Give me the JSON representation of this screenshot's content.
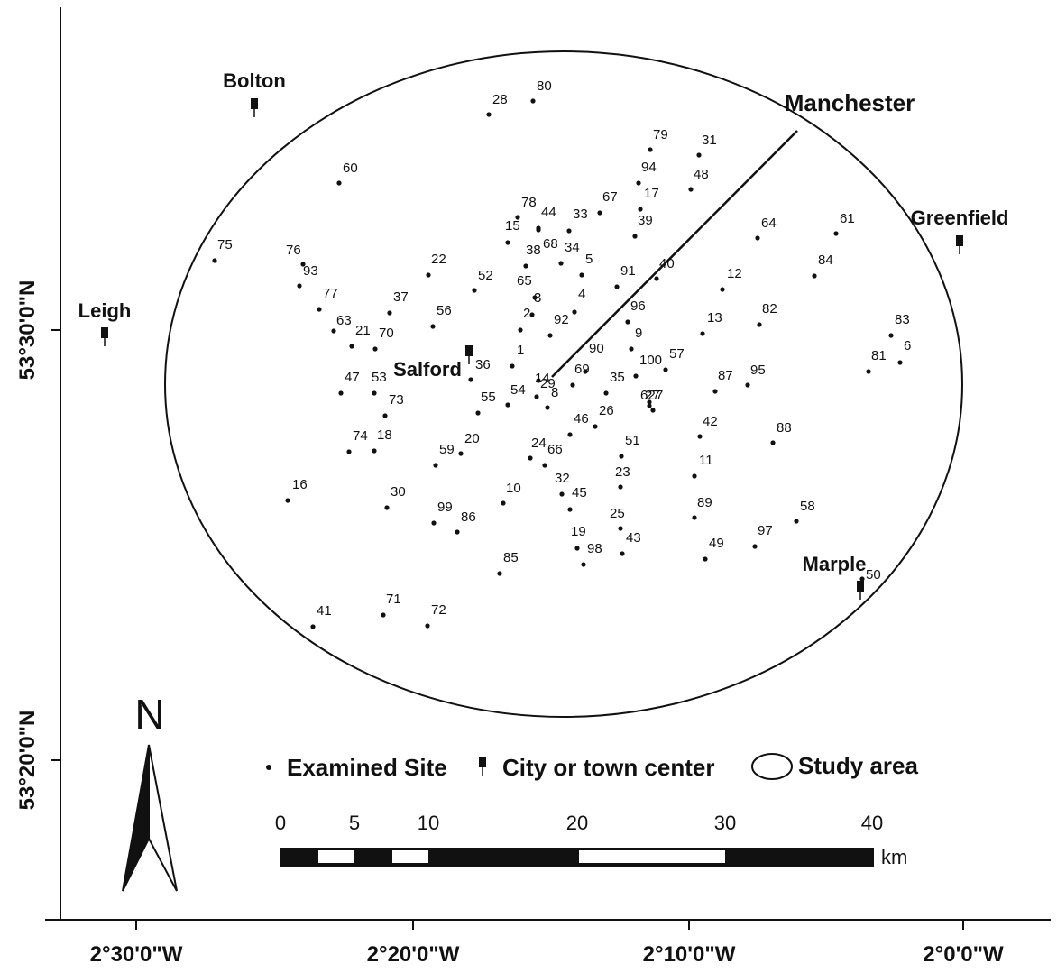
{
  "map": {
    "axes": {
      "x_ticks": [
        "2°30'0\"W",
        "2°20'0\"W",
        "2°10'0\"W",
        "2°0'0\"W"
      ],
      "y_ticks": [
        "53°30'0\"N",
        "53°20'0\"N"
      ]
    },
    "north_label": "N",
    "radial_label": "Manchester",
    "legend": {
      "site_label": "Examined Site",
      "city_label": "City or town center",
      "area_label": "Study area"
    },
    "scale": {
      "labels": [
        "0",
        "5",
        "10",
        "20",
        "30",
        "40"
      ],
      "unit": "km"
    },
    "cities": [
      {
        "id": "bolton",
        "name": "Bolton"
      },
      {
        "id": "leigh",
        "name": "Leigh"
      },
      {
        "id": "salford",
        "name": "Salford"
      },
      {
        "id": "greenfield",
        "name": "Greenfield"
      },
      {
        "id": "marple",
        "name": "Marple"
      }
    ],
    "sites": [
      "1",
      "2",
      "3",
      "4",
      "5",
      "6",
      "7",
      "8",
      "9",
      "10",
      "11",
      "12",
      "13",
      "14",
      "15",
      "16",
      "17",
      "18",
      "19",
      "20",
      "21",
      "22",
      "23",
      "24",
      "25",
      "26",
      "27",
      "28",
      "29",
      "30",
      "31",
      "32",
      "33",
      "34",
      "35",
      "36",
      "37",
      "38",
      "39",
      "40",
      "41",
      "42",
      "43",
      "44",
      "45",
      "46",
      "47",
      "48",
      "49",
      "50",
      "51",
      "52",
      "53",
      "54",
      "55",
      "56",
      "57",
      "58",
      "59",
      "60",
      "61",
      "62",
      "63",
      "64",
      "65",
      "66",
      "67",
      "68",
      "69",
      "70",
      "71",
      "72",
      "73",
      "74",
      "75",
      "76",
      "77",
      "78",
      "79",
      "80",
      "81",
      "82",
      "83",
      "84",
      "85",
      "86",
      "87",
      "88",
      "89",
      "90",
      "91",
      "92",
      "93",
      "94",
      "95",
      "96",
      "97",
      "98",
      "99",
      "100"
    ]
  }
}
